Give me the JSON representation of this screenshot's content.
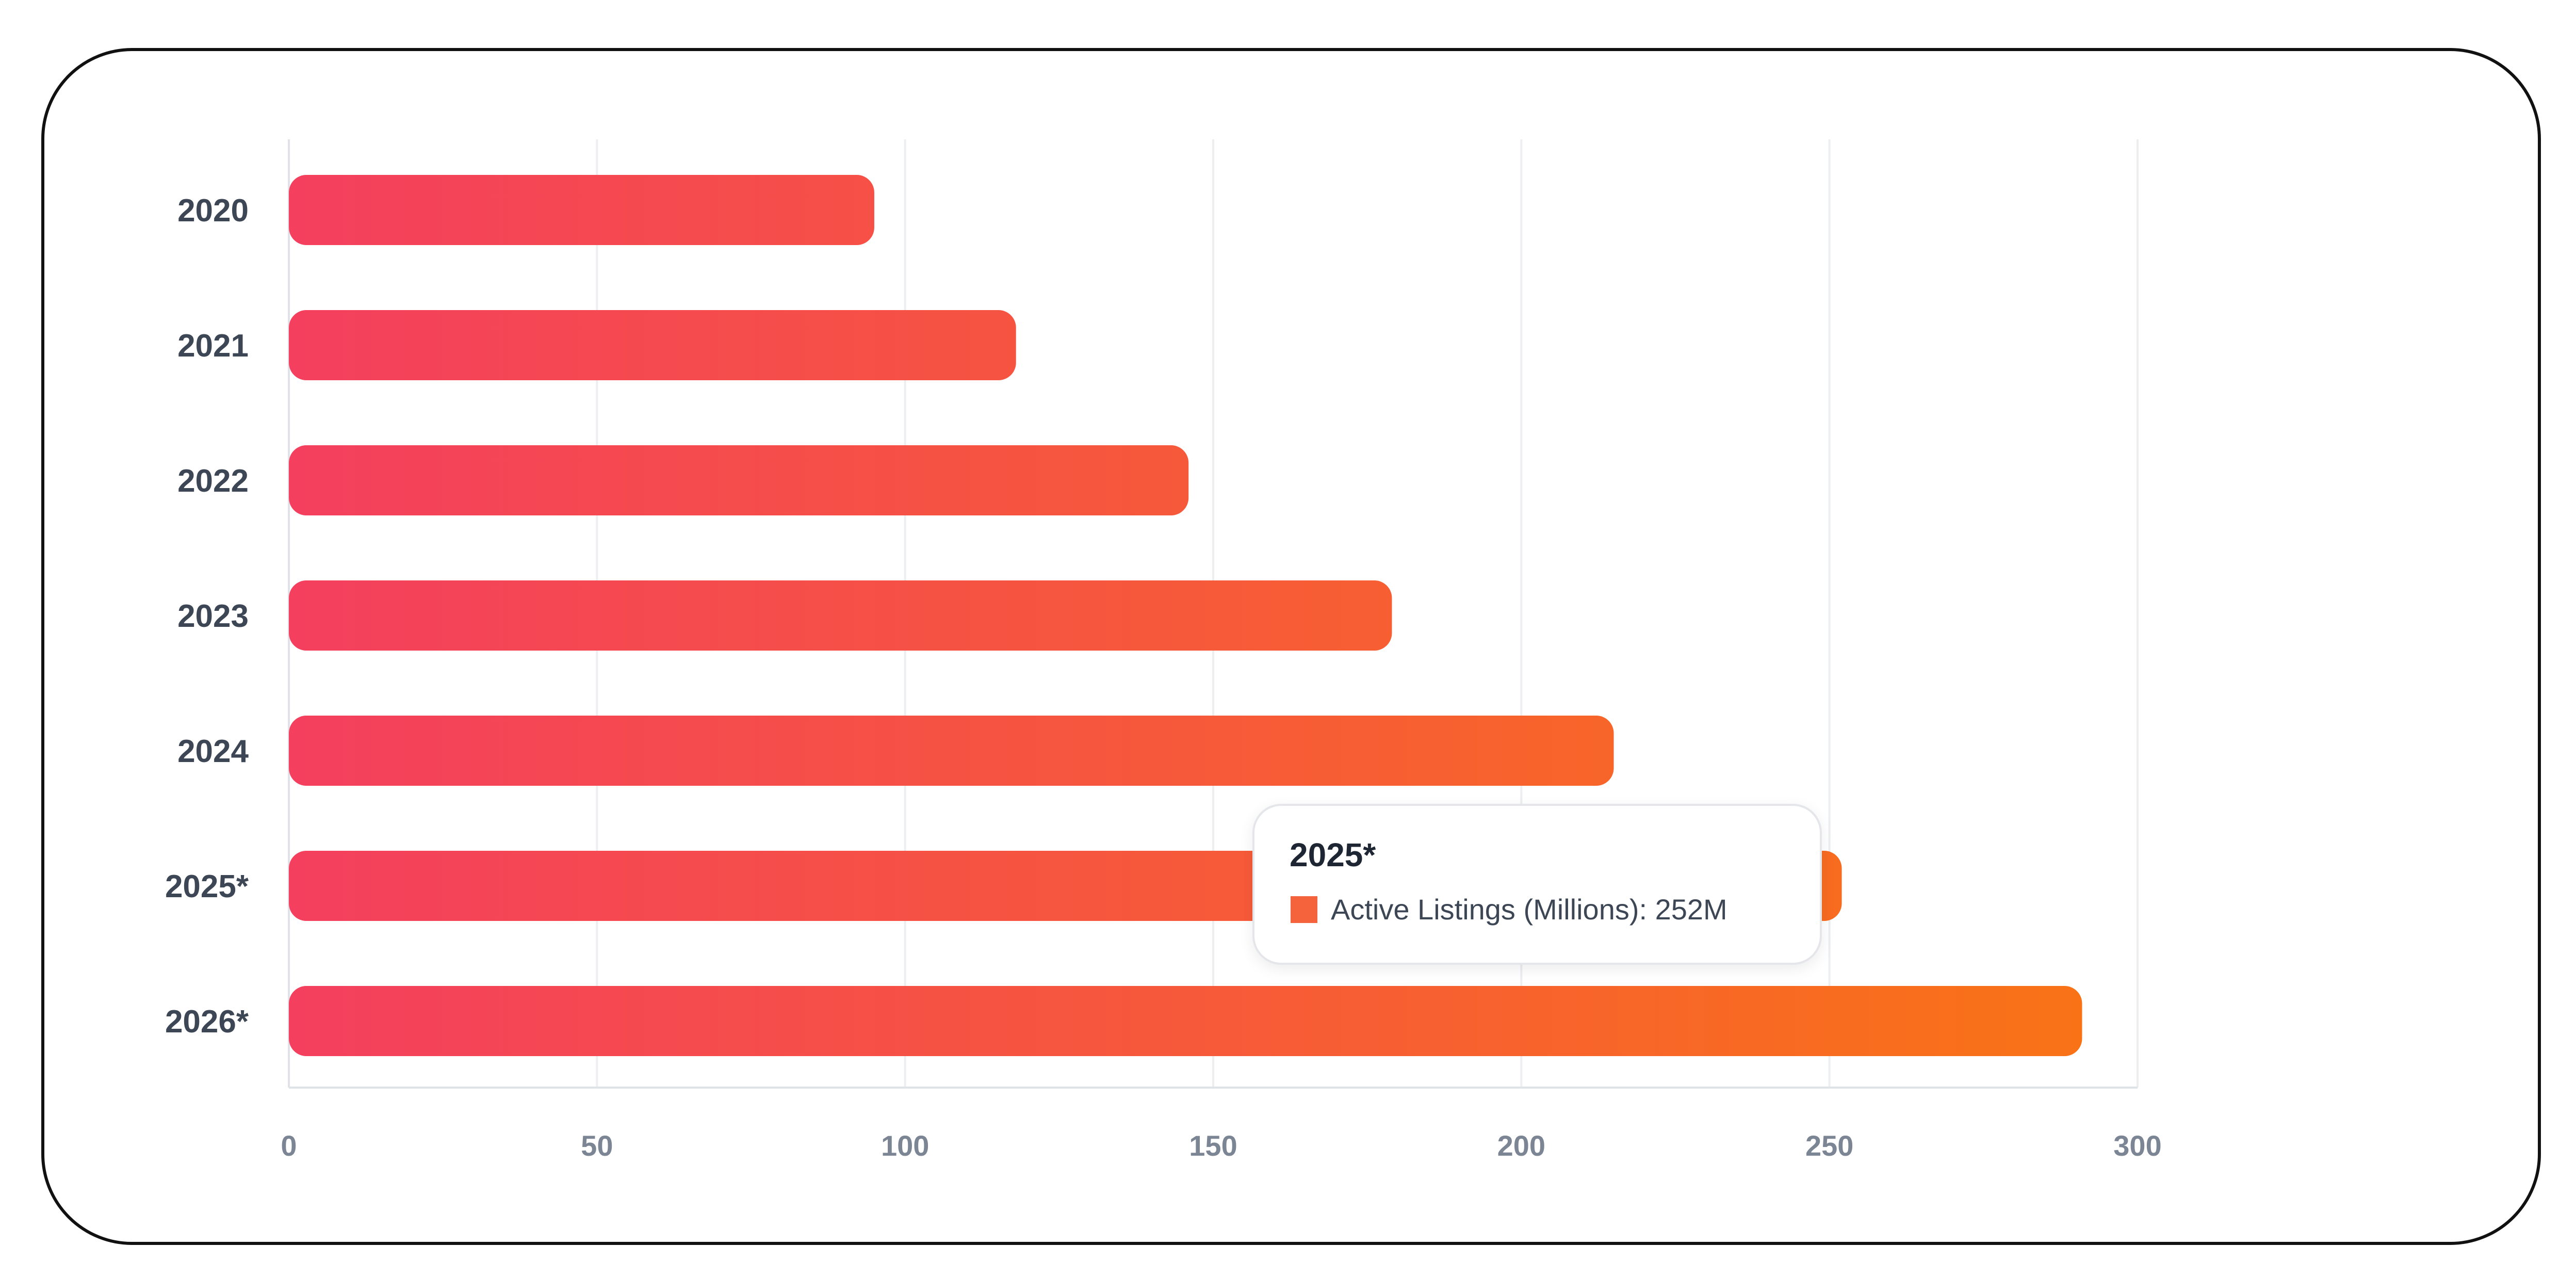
{
  "chart_data": {
    "type": "bar",
    "orientation": "horizontal",
    "categories": [
      "2020",
      "2021",
      "2022",
      "2023",
      "2024",
      "2025*",
      "2026*"
    ],
    "series": [
      {
        "name": "Active Listings (Millions)",
        "values": [
          95,
          118,
          146,
          179,
          215,
          252,
          291
        ]
      }
    ],
    "xlim": [
      0,
      300
    ],
    "x_ticks": [
      "0",
      "50",
      "100",
      "150",
      "200",
      "250",
      "300"
    ],
    "grid": "vertical",
    "legend": "none",
    "colors": {
      "gradient_start": "#f43f5e",
      "gradient_end": "#f97316",
      "grid": "#eceef1"
    },
    "tooltip": {
      "title": "2025*",
      "series_label": "Active Listings (Millions)",
      "value_text": "252M",
      "swatch_color": "#f5633d"
    }
  }
}
